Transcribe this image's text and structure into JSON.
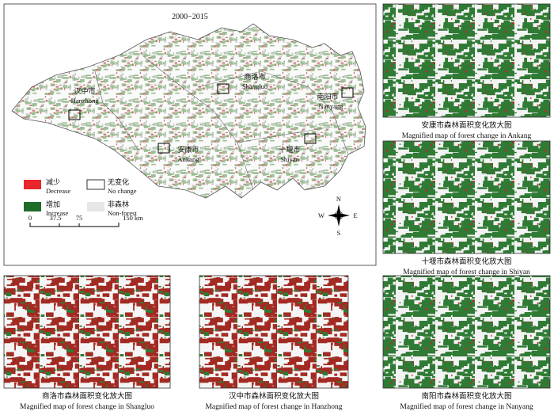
{
  "main_map": {
    "title": "2000−2015",
    "cities": [
      {
        "zh": "汉中市",
        "en": "Hanzhong"
      },
      {
        "zh": "商洛市",
        "en": "Shangluo"
      },
      {
        "zh": "南阳市",
        "en": "Nanyang"
      },
      {
        "zh": "安康市",
        "en": "Ankang"
      },
      {
        "zh": "十堰市",
        "en": "Shiyan"
      }
    ],
    "legend": [
      {
        "zh": "减少",
        "en": "Decrease"
      },
      {
        "zh": "无变化",
        "en": "No change"
      },
      {
        "zh": "增加",
        "en": "Increase"
      },
      {
        "zh": "非森林",
        "en": "Non-forest"
      }
    ],
    "scale_bar": [
      "0",
      "37.5",
      "75",
      "150 km"
    ],
    "compass": {
      "north": "N",
      "south": "S",
      "east": "E",
      "west": "W"
    }
  },
  "panels": [
    {
      "caption_zh": "安康市森林面积变化放大图",
      "caption_en": "Magnified map of forest change in Ankang"
    },
    {
      "caption_zh": "十堰市森林面积变化放大图",
      "caption_en": "Magnified map of forest change in Shiyan"
    },
    {
      "caption_zh": "商洛市森林面积变化放大图",
      "caption_en": "Magnified map of forest change in Shangluo"
    },
    {
      "caption_zh": "汉中市森林面积变化放大图",
      "caption_en": "Magnified map of forest change in Hanzhong"
    },
    {
      "caption_zh": "南阳市森林面积变化放大图",
      "caption_en": "Magnified map of forest change in Nanyang"
    }
  ]
}
